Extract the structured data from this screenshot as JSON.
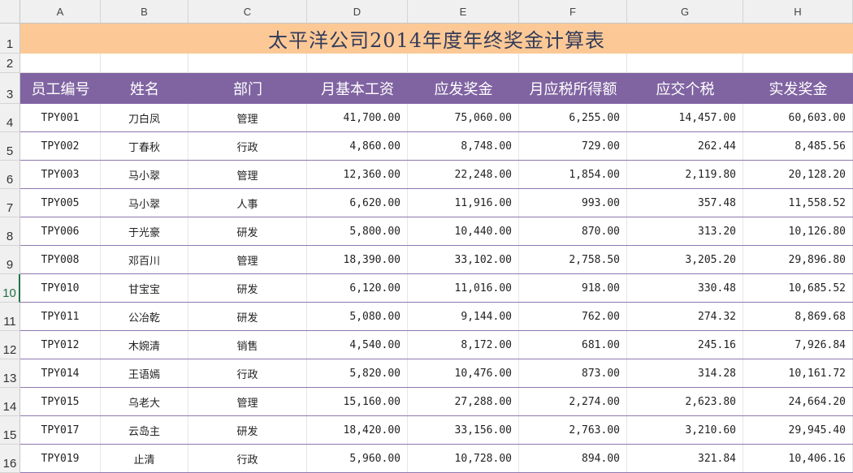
{
  "columns": [
    "A",
    "B",
    "C",
    "D",
    "E",
    "F",
    "G",
    "H"
  ],
  "row_numbers": [
    "1",
    "2",
    "3",
    "4",
    "5",
    "6",
    "7",
    "8",
    "9",
    "10",
    "11",
    "12",
    "13",
    "14",
    "15",
    "16"
  ],
  "selected_row": "10",
  "title": "太平洋公司2014年度年终奖金计算表",
  "headers": [
    "员工编号",
    "姓名",
    "部门",
    "月基本工资",
    "应发奖金",
    "月应税所得额",
    "应交个税",
    "实发奖金"
  ],
  "rows": [
    [
      "TPY001",
      "刀白凤",
      "管理",
      "41,700.00",
      "75,060.00",
      "6,255.00",
      "14,457.00",
      "60,603.00"
    ],
    [
      "TPY002",
      "丁春秋",
      "行政",
      "4,860.00",
      "8,748.00",
      "729.00",
      "262.44",
      "8,485.56"
    ],
    [
      "TPY003",
      "马小翠",
      "管理",
      "12,360.00",
      "22,248.00",
      "1,854.00",
      "2,119.80",
      "20,128.20"
    ],
    [
      "TPY005",
      "马小翠",
      "人事",
      "6,620.00",
      "11,916.00",
      "993.00",
      "357.48",
      "11,558.52"
    ],
    [
      "TPY006",
      "于光豪",
      "研发",
      "5,800.00",
      "10,440.00",
      "870.00",
      "313.20",
      "10,126.80"
    ],
    [
      "TPY008",
      "邓百川",
      "管理",
      "18,390.00",
      "33,102.00",
      "2,758.50",
      "3,205.20",
      "29,896.80"
    ],
    [
      "TPY010",
      "甘宝宝",
      "研发",
      "6,120.00",
      "11,016.00",
      "918.00",
      "330.48",
      "10,685.52"
    ],
    [
      "TPY011",
      "公冶乾",
      "研发",
      "5,080.00",
      "9,144.00",
      "762.00",
      "274.32",
      "8,869.68"
    ],
    [
      "TPY012",
      "木婉清",
      "销售",
      "4,540.00",
      "8,172.00",
      "681.00",
      "245.16",
      "7,926.84"
    ],
    [
      "TPY014",
      "王语嫣",
      "行政",
      "5,820.00",
      "10,476.00",
      "873.00",
      "314.28",
      "10,161.72"
    ],
    [
      "TPY015",
      "乌老大",
      "管理",
      "15,160.00",
      "27,288.00",
      "2,274.00",
      "2,623.80",
      "24,664.20"
    ],
    [
      "TPY017",
      "云岛主",
      "研发",
      "18,420.00",
      "33,156.00",
      "2,763.00",
      "3,210.60",
      "29,945.40"
    ],
    [
      "TPY019",
      "止清",
      "行政",
      "5,960.00",
      "10,728.00",
      "894.00",
      "321.84",
      "10,406.16"
    ]
  ],
  "colors": {
    "title_bg": "#fcc996",
    "header_bg": "#8064a2",
    "row_border": "#8e78b0"
  }
}
